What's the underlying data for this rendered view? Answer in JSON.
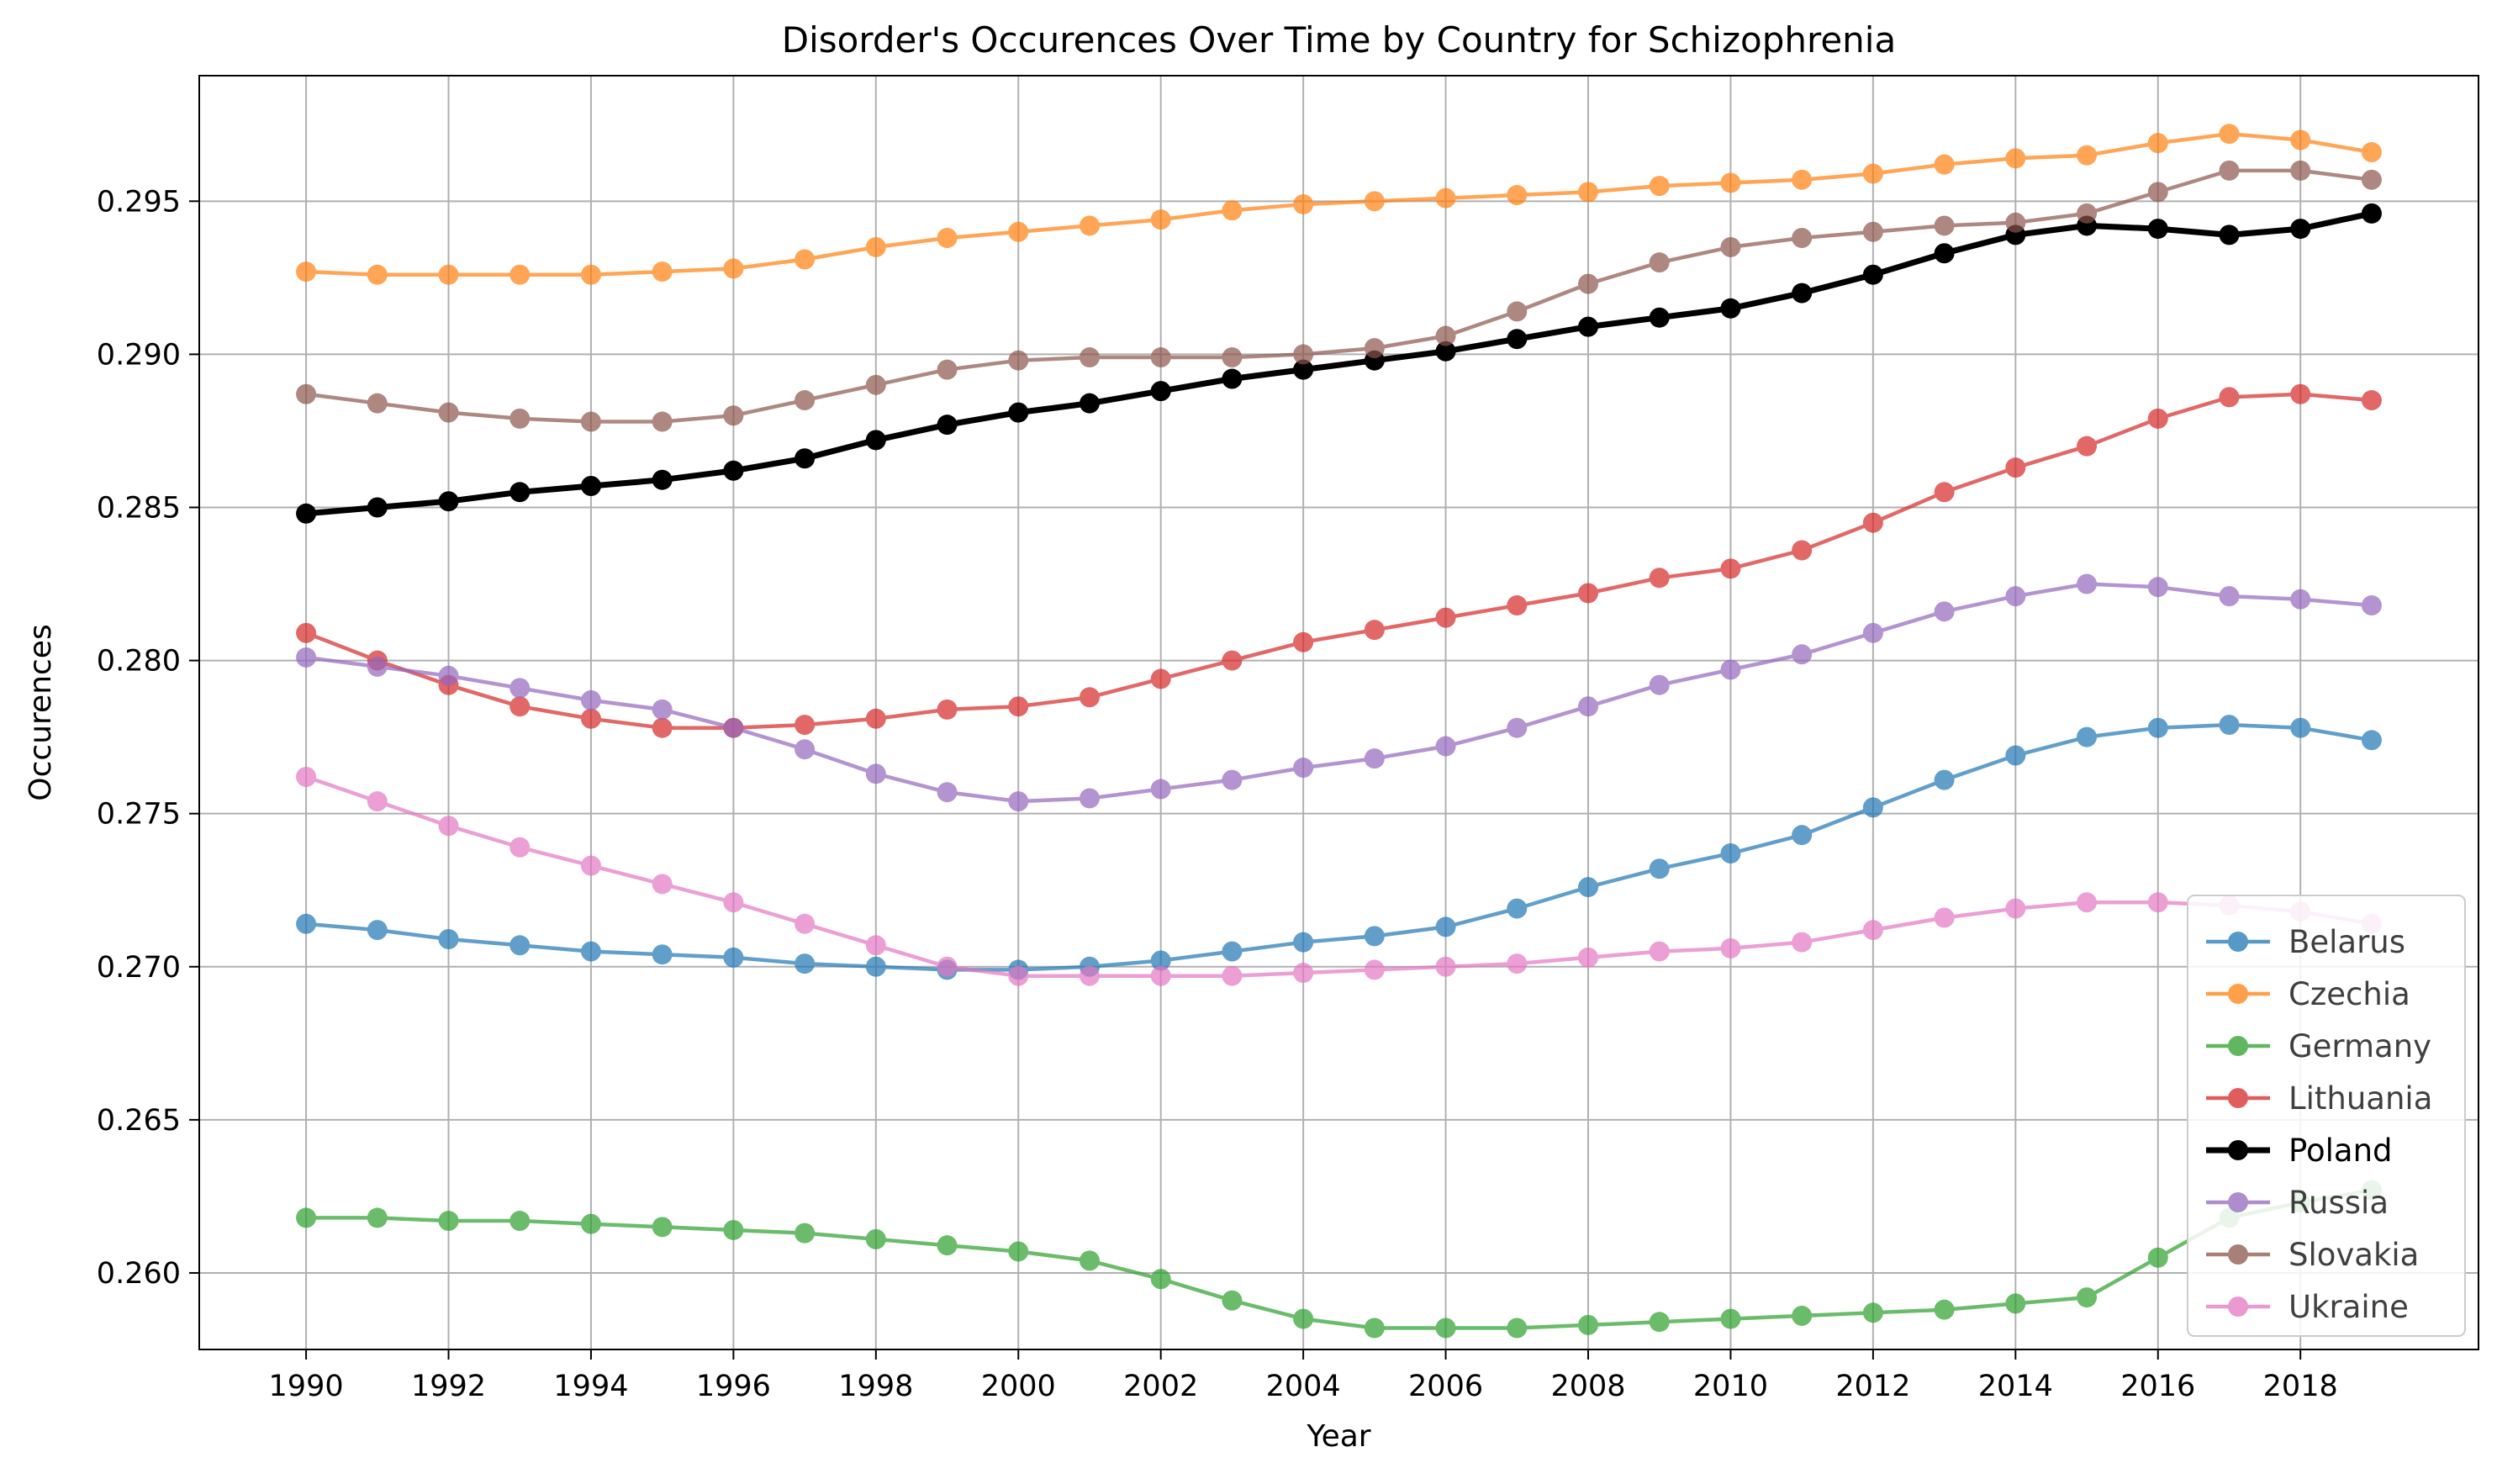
{
  "chart_data": {
    "type": "line",
    "title": "Disorder's Occurences Over Time by Country for Schizophrenia",
    "xlabel": "Year",
    "ylabel": "Occurences",
    "xlim": [
      1988.5,
      2020.5
    ],
    "ylim": [
      0.2575,
      0.2991
    ],
    "x_ticks": [
      "1990",
      "1992",
      "1994",
      "1996",
      "1998",
      "2000",
      "2002",
      "2004",
      "2006",
      "2008",
      "2010",
      "2012",
      "2014",
      "2016",
      "2018"
    ],
    "y_ticks": [
      "0.260",
      "0.265",
      "0.270",
      "0.275",
      "0.280",
      "0.285",
      "0.290",
      "0.295"
    ],
    "grid": true,
    "legend_position": "lower-right",
    "x": [
      1990,
      1991,
      1992,
      1993,
      1994,
      1995,
      1996,
      1997,
      1998,
      1999,
      2000,
      2001,
      2002,
      2003,
      2004,
      2005,
      2006,
      2007,
      2008,
      2009,
      2010,
      2011,
      2012,
      2013,
      2014,
      2015,
      2016,
      2017,
      2018,
      2019
    ],
    "series": [
      {
        "name": "Belarus",
        "color": "#1f77b4",
        "bold": false,
        "values": [
          0.2714,
          0.2712,
          0.2709,
          0.2707,
          0.2705,
          0.2704,
          0.2703,
          0.2701,
          0.27,
          0.2699,
          0.2699,
          0.27,
          0.2702,
          0.2705,
          0.2708,
          0.271,
          0.2713,
          0.2719,
          0.2726,
          0.2732,
          0.2737,
          0.2743,
          0.2752,
          0.2761,
          0.2769,
          0.2775,
          0.2778,
          0.2779,
          0.2778,
          0.2774
        ]
      },
      {
        "name": "Czechia",
        "color": "#ff7f0e",
        "bold": false,
        "values": [
          0.2927,
          0.2926,
          0.2926,
          0.2926,
          0.2926,
          0.2927,
          0.2928,
          0.2931,
          0.2935,
          0.2938,
          0.294,
          0.2942,
          0.2944,
          0.2947,
          0.2949,
          0.295,
          0.2951,
          0.2952,
          0.2953,
          0.2955,
          0.2956,
          0.2957,
          0.2959,
          0.2962,
          0.2964,
          0.2965,
          0.2969,
          0.2972,
          0.297,
          0.2966
        ]
      },
      {
        "name": "Germany",
        "color": "#2ca02c",
        "bold": false,
        "values": [
          0.2618,
          0.2618,
          0.2617,
          0.2617,
          0.2616,
          0.2615,
          0.2614,
          0.2613,
          0.2611,
          0.2609,
          0.2607,
          0.2604,
          0.2598,
          0.2591,
          0.2585,
          0.2582,
          0.2582,
          0.2582,
          0.2583,
          0.2584,
          0.2585,
          0.2586,
          0.2587,
          0.2588,
          0.259,
          0.2592,
          0.2605,
          0.2618,
          0.2623,
          0.2627
        ]
      },
      {
        "name": "Lithuania",
        "color": "#d62728",
        "bold": false,
        "values": [
          0.2809,
          0.28,
          0.2792,
          0.2785,
          0.2781,
          0.2778,
          0.2778,
          0.2779,
          0.2781,
          0.2784,
          0.2785,
          0.2788,
          0.2794,
          0.28,
          0.2806,
          0.281,
          0.2814,
          0.2818,
          0.2822,
          0.2827,
          0.283,
          0.2836,
          0.2845,
          0.2855,
          0.2863,
          0.287,
          0.2879,
          0.2886,
          0.2887,
          0.2885
        ]
      },
      {
        "name": "Poland",
        "color": "#000000",
        "bold": true,
        "values": [
          0.2848,
          0.285,
          0.2852,
          0.2855,
          0.2857,
          0.2859,
          0.2862,
          0.2866,
          0.2872,
          0.2877,
          0.2881,
          0.2884,
          0.2888,
          0.2892,
          0.2895,
          0.2898,
          0.2901,
          0.2905,
          0.2909,
          0.2912,
          0.2915,
          0.292,
          0.2926,
          0.2933,
          0.2939,
          0.2942,
          0.2941,
          0.2939,
          0.2941,
          0.2946
        ]
      },
      {
        "name": "Russia",
        "color": "#9467bd",
        "bold": false,
        "values": [
          0.2801,
          0.2798,
          0.2795,
          0.2791,
          0.2787,
          0.2784,
          0.2778,
          0.2771,
          0.2763,
          0.2757,
          0.2754,
          0.2755,
          0.2758,
          0.2761,
          0.2765,
          0.2768,
          0.2772,
          0.2778,
          0.2785,
          0.2792,
          0.2797,
          0.2802,
          0.2809,
          0.2816,
          0.2821,
          0.2825,
          0.2824,
          0.2821,
          0.282,
          0.2818
        ]
      },
      {
        "name": "Slovakia",
        "color": "#8c564b",
        "bold": false,
        "values": [
          0.2887,
          0.2884,
          0.2881,
          0.2879,
          0.2878,
          0.2878,
          0.288,
          0.2885,
          0.289,
          0.2895,
          0.2898,
          0.2899,
          0.2899,
          0.2899,
          0.29,
          0.2902,
          0.2906,
          0.2914,
          0.2923,
          0.293,
          0.2935,
          0.2938,
          0.294,
          0.2942,
          0.2943,
          0.2946,
          0.2953,
          0.296,
          0.296,
          0.2957
        ]
      },
      {
        "name": "Ukraine",
        "color": "#e377c2",
        "bold": false,
        "values": [
          0.2762,
          0.2754,
          0.2746,
          0.2739,
          0.2733,
          0.2727,
          0.2721,
          0.2714,
          0.2707,
          0.27,
          0.2697,
          0.2697,
          0.2697,
          0.2697,
          0.2698,
          0.2699,
          0.27,
          0.2701,
          0.2703,
          0.2705,
          0.2706,
          0.2708,
          0.2712,
          0.2716,
          0.2719,
          0.2721,
          0.2721,
          0.272,
          0.2718,
          0.2714
        ]
      }
    ]
  }
}
